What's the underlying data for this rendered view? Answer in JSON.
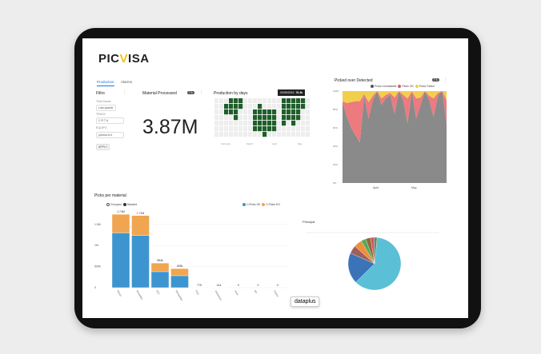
{
  "app": {
    "logo": "PICVISA",
    "brand_color": "#f0c419"
  },
  "tabs": [
    {
      "label": "Production",
      "active": true
    },
    {
      "label": "Alarms",
      "active": false
    }
  ],
  "filters": {
    "title": "Filtrs",
    "time_label": "Time bound",
    "time_value": "Last quarter",
    "track_label": "TRACK",
    "track_value": "C R T A",
    "equipo_label": "EQUIPO",
    "equipo_value": "picvisa ec1",
    "apply_label": "APPLY"
  },
  "material_processed": {
    "title": "Material Processed",
    "badge": "7 k",
    "value": "3.87M"
  },
  "production_by_days": {
    "title": "Production by days",
    "tooltip_date": "02/05/2021:",
    "tooltip_value": "76.3k",
    "months": [
      "February",
      "March",
      "April",
      "May"
    ],
    "grid": [
      "0000000",
      "0000000",
      "0110000",
      "1110000",
      "1111000",
      "1100000",
      "0000000",
      "0000000",
      "0011110",
      "0111110",
      "0011111",
      "0011110",
      "0011110",
      "0000000",
      "1111100",
      "1111000",
      "1111100",
      "1111000",
      "1100000",
      "0000000"
    ]
  },
  "picked_over_detected": {
    "title": "Picked over Detected",
    "badge": "7 k"
  },
  "picks_per_material": {
    "title": "Picks per material",
    "mode_options": [
      "Grouped",
      "Stacked"
    ]
  },
  "pie_panel": {
    "title": "Principal"
  },
  "watermark": "dataplus",
  "chart_data": [
    {
      "type": "area",
      "title": "Picked over Detected",
      "stacked": true,
      "ylim": [
        0,
        100
      ],
      "yticks": [
        "0%",
        "20%",
        "40%",
        "60%",
        "80%",
        "100%"
      ],
      "xticks": [
        "April",
        "May"
      ],
      "series": [
        {
          "name": "Picks Unrotatable",
          "color": "#8a8a8a",
          "values": [
            88,
            72,
            60,
            52,
            44,
            95,
            70,
            90,
            100,
            85,
            92,
            96,
            75,
            100,
            90,
            65,
            100,
            70,
            85,
            100,
            90,
            72,
            95,
            100,
            65
          ]
        },
        {
          "name": "Picks OK",
          "color": "#ec7a7f",
          "values": [
            1,
            15,
            28,
            37,
            45,
            2,
            18,
            5,
            0,
            7,
            4,
            2,
            18,
            0,
            6,
            27,
            0,
            22,
            8,
            0,
            5,
            20,
            3,
            0,
            25
          ]
        },
        {
          "name": "Picks Failed",
          "color": "#f2cf4a",
          "values": [
            11,
            13,
            12,
            11,
            11,
            3,
            12,
            5,
            0,
            8,
            4,
            2,
            7,
            0,
            4,
            8,
            0,
            8,
            7,
            0,
            5,
            8,
            2,
            0,
            10
          ]
        }
      ]
    },
    {
      "type": "bar",
      "title": "Picks per material",
      "stacked": true,
      "yticks": [
        "0",
        "500k",
        "1M",
        "1.5M"
      ],
      "ylim": [
        0,
        1800000
      ],
      "categories": [
        "PEHD",
        "Bouteilles",
        "PET",
        "Barquettes",
        "PVC",
        "Aluminium",
        "Acier",
        "PP",
        "Carton"
      ],
      "data_labels": [
        "1.74M",
        "1.71M",
        "584k",
        "453k",
        "775",
        "144",
        "0",
        "0",
        "0"
      ],
      "series": [
        {
          "name": "1-Picks OK",
          "color": "#3d95cf",
          "values": [
            1300000,
            1240000,
            380000,
            285000,
            600,
            110,
            0,
            0,
            0
          ]
        },
        {
          "name": "2-Picks KO",
          "color": "#f0a550",
          "values": [
            440000,
            470000,
            204000,
            168000,
            175,
            34,
            0,
            0,
            0
          ]
        }
      ]
    },
    {
      "type": "pie",
      "title": "Principal",
      "values": [
        61,
        19,
        5,
        5,
        3,
        3,
        2,
        2
      ],
      "colors": [
        "#5bbfd6",
        "#3a73b8",
        "#a0605a",
        "#ef8f3a",
        "#58a85a",
        "#8d6a3a",
        "#d94d6c",
        "#6a8a5a"
      ]
    }
  ]
}
